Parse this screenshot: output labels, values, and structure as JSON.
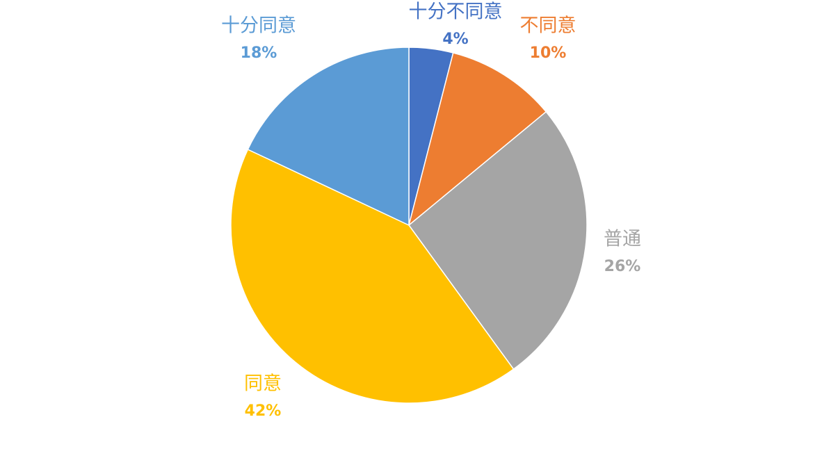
{
  "chart_data": {
    "type": "pie",
    "categories": [
      "十分不同意",
      "不同意",
      "普通",
      "同意",
      "十分同意"
    ],
    "values": [
      4,
      10,
      26,
      42,
      18
    ],
    "value_labels": [
      "4%",
      "10%",
      "26%",
      "42%",
      "18%"
    ],
    "colors": [
      "#4472c4",
      "#ed7d31",
      "#a5a5a5",
      "#ffc000",
      "#5b9bd5"
    ]
  }
}
